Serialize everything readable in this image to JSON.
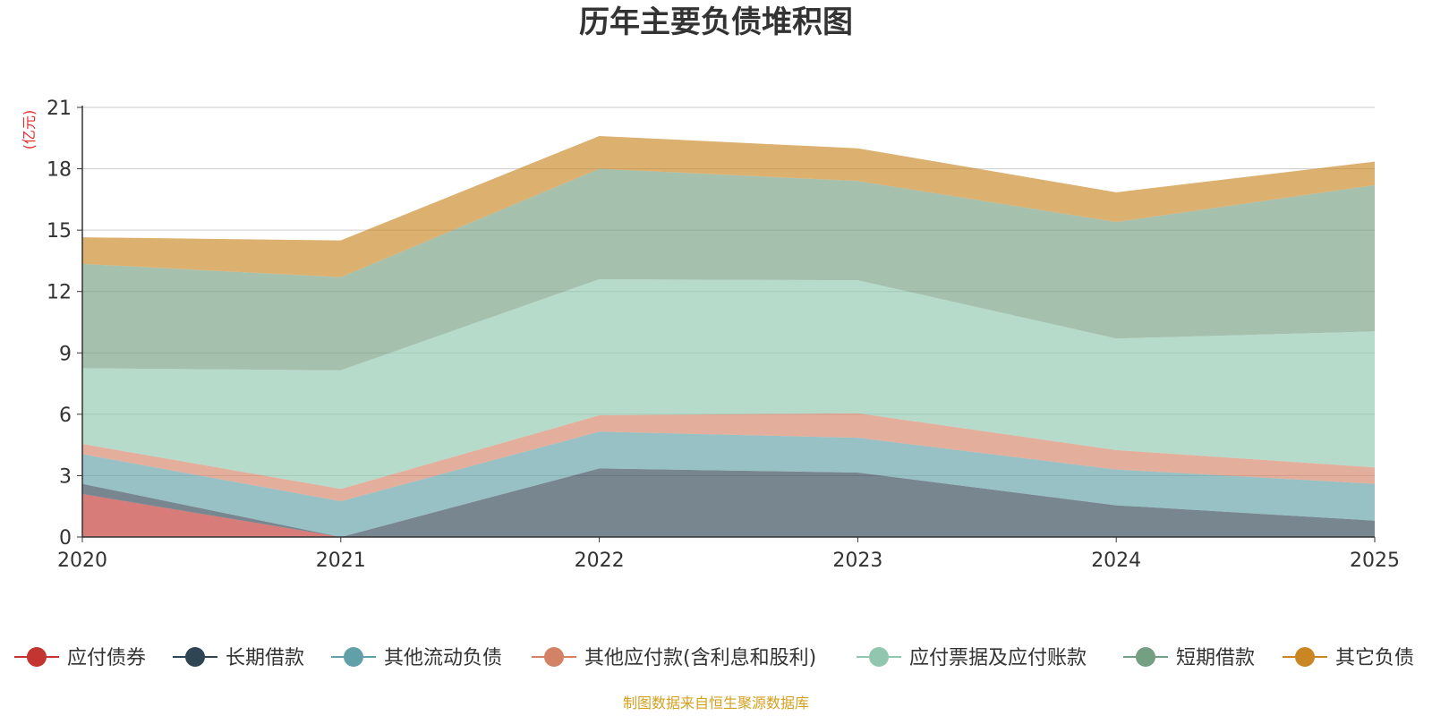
{
  "chart_data": {
    "type": "area",
    "stacked": true,
    "title": "历年主要负债堆积图",
    "unit_label": "(亿元)",
    "x": [
      "2020",
      "2021",
      "2022",
      "2023",
      "2024",
      "2025"
    ],
    "ylim": [
      0,
      21
    ],
    "yticks": [
      0,
      3,
      6,
      9,
      12,
      15,
      18,
      21
    ],
    "grid": true,
    "legend_position": "bottom",
    "series": [
      {
        "name": "应付债券",
        "color": "#c23531",
        "values": [
          2.1,
          0.0,
          0.0,
          0.0,
          0.0,
          0.0
        ]
      },
      {
        "name": "长期借款",
        "color": "#2f4554",
        "values": [
          0.5,
          0.0,
          3.35,
          3.15,
          1.55,
          0.8
        ]
      },
      {
        "name": "其他流动负债",
        "color": "#61a0a8",
        "values": [
          1.45,
          1.75,
          1.8,
          1.7,
          1.75,
          1.8
        ]
      },
      {
        "name": "其他应付款(含利息和股利)",
        "color": "#d48265",
        "values": [
          0.5,
          0.6,
          0.8,
          1.2,
          0.95,
          0.8
        ]
      },
      {
        "name": "应付票据及应付账款",
        "color": "#91c7ae",
        "values": [
          3.7,
          5.8,
          6.65,
          6.5,
          5.45,
          6.65
        ]
      },
      {
        "name": "短期借款",
        "color": "#749f83",
        "values": [
          5.1,
          4.55,
          5.4,
          4.85,
          5.7,
          7.15
        ]
      },
      {
        "name": "其它负债",
        "color": "#ca8622",
        "values": [
          1.3,
          1.8,
          1.6,
          1.6,
          1.45,
          1.15
        ]
      }
    ],
    "source": "制图数据来自恒生聚源数据库",
    "colors": {
      "unit_label": "#e03030",
      "source": "#d4a020",
      "axis": "#333333",
      "grid": "#cccccc"
    }
  }
}
